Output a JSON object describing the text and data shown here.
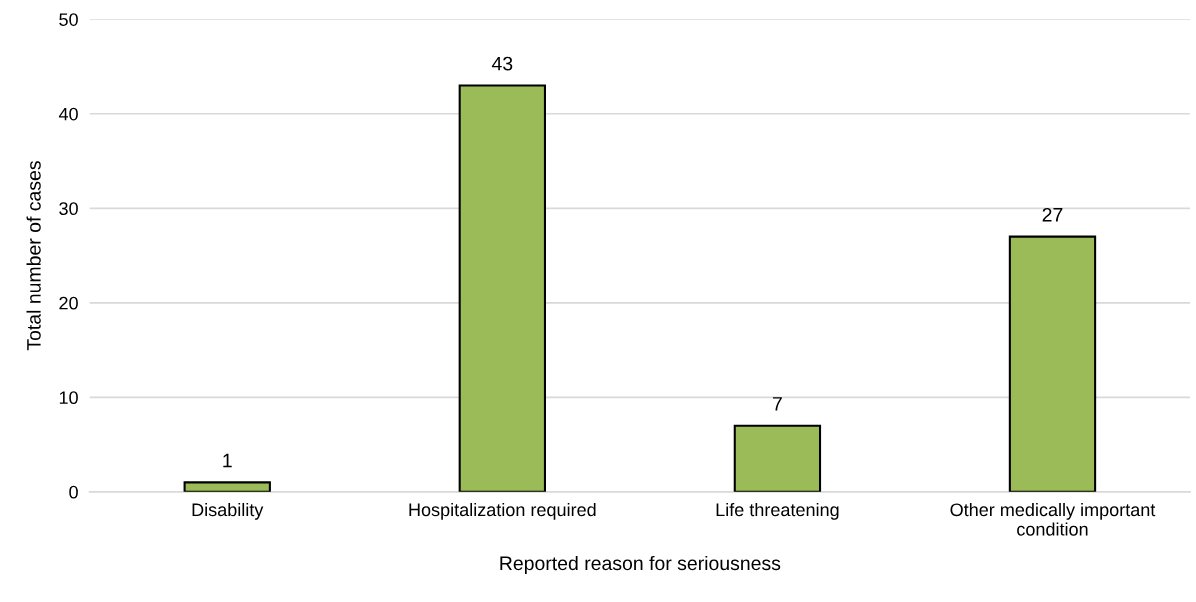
{
  "chart_data": {
    "type": "bar",
    "xlabel": "Reported reason for seriousness",
    "ylabel": "Total number of cases",
    "categories": [
      "Disability",
      "Hospitalization required",
      "Life threatening",
      "Other medically important condition"
    ],
    "values": [
      1,
      43,
      7,
      27
    ],
    "color": "#9bbb59",
    "ylim": [
      0,
      50
    ],
    "yticks": [
      0,
      10,
      20,
      30,
      40,
      50
    ],
    "grid": "y",
    "data_labels": true,
    "legend": false
  }
}
